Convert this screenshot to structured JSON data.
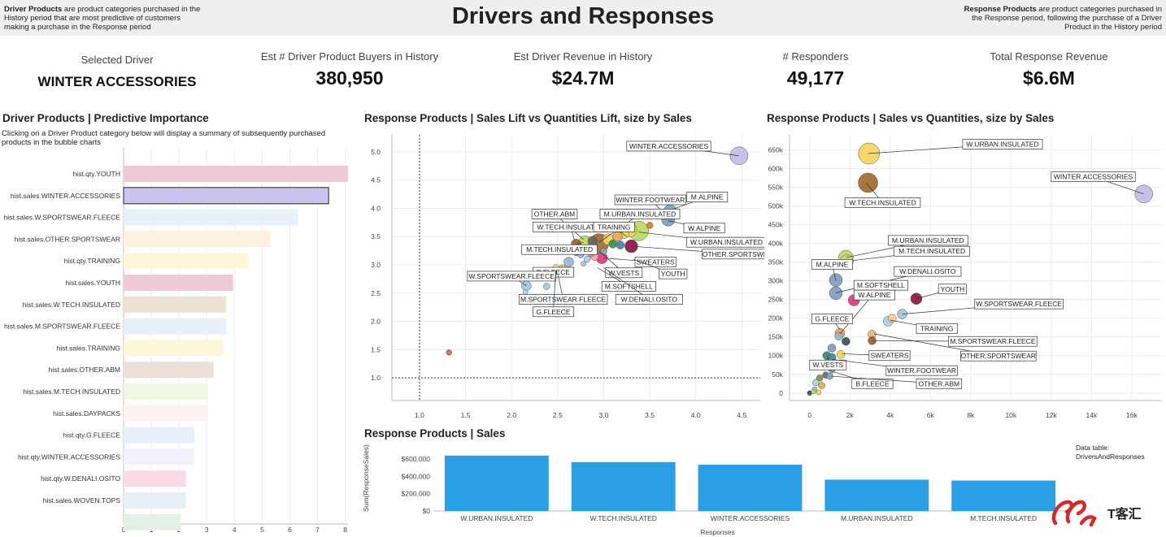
{
  "header": {
    "title": "Drivers and Responses",
    "left_bold": "Driver Products",
    "left_text": " are product categories purchased in the History period that are most predictive of customers making a purchase in the Response period",
    "right_bold": "Response Products",
    "right_text": " are product categories purchased in the Response period, following the purchase of a Driver Product in the History period"
  },
  "kpis": [
    {
      "label": "Selected Driver",
      "value": "WINTER ACCESSORIES"
    },
    {
      "label": "Est # Driver Product Buyers in History",
      "value": "380,950"
    },
    {
      "label": "Est Driver Revenue in History",
      "value": "$24.7M"
    },
    {
      "label": "# Responders",
      "value": "49,177"
    },
    {
      "label": "Total Response Revenue",
      "value": "$6.6M"
    }
  ],
  "importance": {
    "title": "Driver Products | Predictive Importance",
    "subtitle": "Clicking on a Driver Product category below will display a summary of subsequently purchased products in the bubble charts",
    "selected": "hist.sales.WINTER.ACCESSORIES",
    "xticks": [
      0,
      1,
      2,
      3,
      4,
      5,
      6,
      7,
      8
    ],
    "xmax": 8.1,
    "rows": [
      {
        "label": "hist.qty.YOUTH",
        "value": 8.1,
        "color": "#efc9d8"
      },
      {
        "label": "hist.sales.WINTER.ACCESSORIES",
        "value": 7.4,
        "color": "#cdc3ee"
      },
      {
        "label": "hist.sales.W.SPORTSWEAR.FLEECE",
        "value": 6.3,
        "color": "#e6f1f9"
      },
      {
        "label": "hist.sales.OTHER.SPORTSWEAR",
        "value": 5.3,
        "color": "#fdf0dd"
      },
      {
        "label": "hist.qty.TRAINING",
        "value": 4.5,
        "color": "#fdf6d9"
      },
      {
        "label": "hist.sales.YOUTH",
        "value": 3.95,
        "color": "#efc9d8"
      },
      {
        "label": "hist.sales.W.TECH.INSULATED",
        "value": 3.7,
        "color": "#eee0d3"
      },
      {
        "label": "hist.sales.M.SPORTSWEAR.FLEECE",
        "value": 3.7,
        "color": "#e6f1f9"
      },
      {
        "label": "hist.sales.TRAINING",
        "value": 3.6,
        "color": "#fdf6d9"
      },
      {
        "label": "hist.sales.OTHER.ABM",
        "value": 3.25,
        "color": "#eae0d6"
      },
      {
        "label": "hist.sales.M.TECH.INSULATED",
        "value": 3.05,
        "color": "#eef6e4"
      },
      {
        "label": "hist.sales.DAYPACKS",
        "value": 3.05,
        "color": "#fcf3f1"
      },
      {
        "label": "hist.qty.G.FLEECE",
        "value": 2.55,
        "color": "#e7f0f8"
      },
      {
        "label": "hist.qty.WINTER.ACCESSORIES",
        "value": 2.55,
        "color": "#f2f0fa"
      },
      {
        "label": "hist.qty.W.DENALI.OSITO",
        "value": 2.25,
        "color": "#fcd9e7"
      },
      {
        "label": "hist.sales.WOVEN.TOPS",
        "value": 2.25,
        "color": "#e6eef6"
      },
      {
        "label": "",
        "value": 2.05,
        "color": "#e2f1e4"
      }
    ]
  },
  "lift": {
    "title": "Response Products | Sales Lift vs Quantities Lift, size by Sales",
    "xticks": [
      1.0,
      1.5,
      2.0,
      2.5,
      3.0,
      3.5,
      4.0,
      4.5
    ],
    "yticks": [
      1.0,
      1.5,
      2.0,
      2.5,
      3.0,
      3.5,
      4.0,
      4.5,
      5.0
    ],
    "xlim": [
      0.7,
      4.7
    ],
    "ylim": [
      0.6,
      5.3
    ],
    "refline_x": 1.0,
    "refline_y": 1.0,
    "labels": [
      {
        "text": "WINTER.ACCESSORIES",
        "x": 4.47,
        "y": 4.93,
        "lx": 3.25,
        "ly": 5.1
      },
      {
        "text": "M.ALPINE",
        "x": 3.69,
        "y": 3.95,
        "lx": 3.9,
        "ly": 4.2
      },
      {
        "text": "WINTER.FOOTWEAR",
        "x": 3.67,
        "y": 3.9,
        "lx": 3.12,
        "ly": 4.15
      },
      {
        "text": "OTHER.ABM",
        "x": 2.78,
        "y": 3.45,
        "lx": 2.22,
        "ly": 3.9
      },
      {
        "text": "M.URBAN.INSULATED",
        "x": 2.95,
        "y": 3.4,
        "lx": 2.96,
        "ly": 3.9
      },
      {
        "text": "W.ALPINE",
        "x": 3.7,
        "y": 3.78,
        "lx": 3.87,
        "ly": 3.65
      },
      {
        "text": "W.TECH.INSULATED",
        "x": 2.68,
        "y": 3.45,
        "lx": 2.23,
        "ly": 3.67
      },
      {
        "text": "TRAINING",
        "x": 3.25,
        "y": 3.5,
        "lx": 2.89,
        "ly": 3.67
      },
      {
        "text": "W.URBAN.INSULATED",
        "x": 3.38,
        "y": 3.58,
        "lx": 3.9,
        "ly": 3.4
      },
      {
        "text": "M.TECH.INSULATED",
        "x": 2.78,
        "y": 3.4,
        "lx": 2.11,
        "ly": 3.27
      },
      {
        "text": "OTHER.SPORTSWEAR",
        "x": 3.3,
        "y": 3.33,
        "lx": 4.07,
        "ly": 3.19
      },
      {
        "text": "SWEATERS",
        "x": 3.0,
        "y": 3.12,
        "lx": 3.34,
        "ly": 3.05
      },
      {
        "text": "W.VESTS",
        "x": 2.96,
        "y": 3.23,
        "lx": 3.02,
        "ly": 2.86
      },
      {
        "text": "YOUTH",
        "x": 3.32,
        "y": 3.1,
        "lx": 3.6,
        "ly": 2.84
      },
      {
        "text": "B.FLEECE",
        "x": 2.48,
        "y": 2.92,
        "lx": 2.23,
        "ly": 2.87
      },
      {
        "text": "W.SPORTSWEAR.FLEECE",
        "x": 2.16,
        "y": 2.63,
        "lx": 1.52,
        "ly": 2.8
      },
      {
        "text": "M.SOFTSHELL",
        "x": 2.93,
        "y": 2.95,
        "lx": 2.98,
        "ly": 2.62
      },
      {
        "text": "M.SPORTSWEAR.FLEECE",
        "x": 2.5,
        "y": 2.85,
        "lx": 2.08,
        "ly": 2.39
      },
      {
        "text": "W.DENALI.OSITO",
        "x": 3.0,
        "y": 2.95,
        "lx": 3.13,
        "ly": 2.39
      },
      {
        "text": "G.FLEECE",
        "x": 2.48,
        "y": 2.9,
        "lx": 2.23,
        "ly": 2.17
      }
    ],
    "points": [
      {
        "x": 4.47,
        "y": 4.93,
        "r": 11,
        "c": "#c3b8e6"
      },
      {
        "x": 3.72,
        "y": 3.95,
        "r": 8,
        "c": "#7a9bbf"
      },
      {
        "x": 3.7,
        "y": 3.8,
        "r": 8,
        "c": "#7a9bbf"
      },
      {
        "x": 3.68,
        "y": 3.9,
        "r": 5,
        "c": "#2f4e5e"
      },
      {
        "x": 3.5,
        "y": 3.7,
        "r": 4,
        "c": "#e07b1f"
      },
      {
        "x": 3.38,
        "y": 3.6,
        "r": 12,
        "c": "#b8d85c"
      },
      {
        "x": 3.28,
        "y": 3.62,
        "r": 9,
        "c": "#f2d35b"
      },
      {
        "x": 3.3,
        "y": 3.33,
        "r": 8,
        "c": "#8a1240"
      },
      {
        "x": 3.22,
        "y": 3.55,
        "r": 6,
        "c": "#f2d35b"
      },
      {
        "x": 3.15,
        "y": 3.5,
        "r": 6,
        "c": "#e8a34a"
      },
      {
        "x": 3.05,
        "y": 3.45,
        "r": 7,
        "c": "#f2d35b"
      },
      {
        "x": 2.95,
        "y": 3.38,
        "r": 12,
        "c": "#a0662b"
      },
      {
        "x": 2.88,
        "y": 3.42,
        "r": 6,
        "c": "#666666"
      },
      {
        "x": 2.8,
        "y": 3.4,
        "r": 8,
        "c": "#b8d85c"
      },
      {
        "x": 2.7,
        "y": 3.37,
        "r": 6,
        "c": "#9a5a34"
      },
      {
        "x": 3.1,
        "y": 3.37,
        "r": 5,
        "c": "#2e8b57"
      },
      {
        "x": 3.18,
        "y": 3.35,
        "r": 5,
        "c": "#3f7fa7"
      },
      {
        "x": 2.98,
        "y": 3.12,
        "r": 7,
        "c": "#e3307a"
      },
      {
        "x": 2.9,
        "y": 3.15,
        "r": 5,
        "c": "#f3a5a5"
      },
      {
        "x": 2.86,
        "y": 3.2,
        "r": 4,
        "c": "#d99a6b"
      },
      {
        "x": 3.0,
        "y": 3.24,
        "r": 4,
        "c": "#7aa7c7"
      },
      {
        "x": 2.82,
        "y": 3.1,
        "r": 4,
        "c": "#a9cde3"
      },
      {
        "x": 2.75,
        "y": 3.18,
        "r": 4,
        "c": "#7fb3d5"
      },
      {
        "x": 2.7,
        "y": 3.22,
        "r": 4,
        "c": "#7c8c3a"
      },
      {
        "x": 2.78,
        "y": 3.02,
        "r": 3,
        "c": "#9cc6e0"
      },
      {
        "x": 2.62,
        "y": 3.05,
        "r": 6,
        "c": "#8fb8d5"
      },
      {
        "x": 2.55,
        "y": 2.93,
        "r": 5,
        "c": "#e8b46a"
      },
      {
        "x": 2.5,
        "y": 2.88,
        "r": 5,
        "c": "#f0a430"
      },
      {
        "x": 2.48,
        "y": 2.95,
        "r": 4,
        "c": "#f5d08a"
      },
      {
        "x": 2.38,
        "y": 2.62,
        "r": 4,
        "c": "#9cc6e0"
      },
      {
        "x": 2.16,
        "y": 2.63,
        "r": 6,
        "c": "#9cc6e0"
      },
      {
        "x": 2.15,
        "y": 2.52,
        "r": 3,
        "c": "#b5d3e6"
      },
      {
        "x": 1.32,
        "y": 1.45,
        "r": 3.5,
        "c": "#c0704a"
      }
    ]
  },
  "scatter": {
    "title": "Response Products | Sales vs Quantities, size by Sales",
    "xticks": [
      0,
      2000,
      4000,
      6000,
      8000,
      10000,
      12000,
      14000,
      16000
    ],
    "xtick_labels": [
      "0",
      "2k",
      "4k",
      "6k",
      "8k",
      "10k",
      "12k",
      "14k",
      "16k"
    ],
    "yticks": [
      0,
      50000,
      100000,
      150000,
      200000,
      250000,
      300000,
      350000,
      400000,
      450000,
      500000,
      550000,
      600000,
      650000
    ],
    "ytick_labels": [
      "0",
      "50k",
      "100k",
      "150k",
      "200k",
      "250k",
      "300k",
      "350k",
      "400k",
      "450k",
      "500k",
      "550k",
      "600k",
      "650k"
    ],
    "xlim": [
      -1000,
      17500
    ],
    "ylim": [
      -20000,
      690000
    ],
    "labels": [
      {
        "text": "W.URBAN.INSULATED",
        "x": 2900,
        "y": 640000,
        "lx": 7600,
        "ly": 665000
      },
      {
        "text": "WINTER.ACCESSORIES",
        "x": 16600,
        "y": 532000,
        "lx": 12000,
        "ly": 578000
      },
      {
        "text": "W.TECH.INSULATED",
        "x": 2800,
        "y": 562000,
        "lx": 1750,
        "ly": 509000
      },
      {
        "text": "M.URBAN.INSULATED",
        "x": 1800,
        "y": 362000,
        "lx": 3900,
        "ly": 408000
      },
      {
        "text": "M.TECH.INSULATED",
        "x": 1800,
        "y": 352000,
        "lx": 4200,
        "ly": 379000
      },
      {
        "text": "M.ALPINE",
        "x": 1300,
        "y": 300000,
        "lx": 100,
        "ly": 344000
      },
      {
        "text": "W.DENALI.OSITO",
        "x": 1300,
        "y": 268000,
        "lx": 4200,
        "ly": 325000
      },
      {
        "text": "M.SOFTSHELL",
        "x": 1500,
        "y": 158000,
        "lx": 2200,
        "ly": 288000
      },
      {
        "text": "YOUTH",
        "x": 5300,
        "y": 252000,
        "lx": 6400,
        "ly": 278000
      },
      {
        "text": "W.ALPINE",
        "x": 2200,
        "y": 248000,
        "lx": 2200,
        "ly": 262000
      },
      {
        "text": "W.SPORTSWEAR.FLEECE",
        "x": 4600,
        "y": 211000,
        "lx": 8200,
        "ly": 238000
      },
      {
        "text": "G.FLEECE",
        "x": 1500,
        "y": 170000,
        "lx": 100,
        "ly": 198000
      },
      {
        "text": "TRAINING",
        "x": 4000,
        "y": 195000,
        "lx": 5300,
        "ly": 172000
      },
      {
        "text": "M.SPORTSWEAR.FLEECE",
        "x": 3100,
        "y": 140000,
        "lx": 6900,
        "ly": 138000
      },
      {
        "text": "SWEATERS",
        "x": 1600,
        "y": 105000,
        "lx": 2950,
        "ly": 100000
      },
      {
        "text": "OTHER.SPORTSWEAR",
        "x": 3200,
        "y": 158000,
        "lx": 7500,
        "ly": 99000
      },
      {
        "text": "W.VESTS",
        "x": 900,
        "y": 98000,
        "lx": 0,
        "ly": 75000
      },
      {
        "text": "WINTER.FOOTWEAR",
        "x": 1100,
        "y": 90000,
        "lx": 3800,
        "ly": 60000
      },
      {
        "text": "B.FLEECE",
        "x": 1000,
        "y": 60000,
        "lx": 2100,
        "ly": 25000
      },
      {
        "text": "OTHER.ABM",
        "x": 1050,
        "y": 45000,
        "lx": 5300,
        "ly": 25000
      }
    ],
    "points": [
      {
        "x": 2950,
        "y": 640000,
        "r": 13,
        "c": "#f5d35c"
      },
      {
        "x": 16600,
        "y": 532000,
        "r": 11,
        "c": "#c3b8e6"
      },
      {
        "x": 2900,
        "y": 562000,
        "r": 12,
        "c": "#a0662b"
      },
      {
        "x": 1800,
        "y": 362000,
        "r": 9,
        "c": "#b8d85c"
      },
      {
        "x": 1850,
        "y": 352000,
        "r": 8,
        "c": "#c5df7a"
      },
      {
        "x": 1300,
        "y": 302000,
        "r": 8,
        "c": "#7a9bbf"
      },
      {
        "x": 1300,
        "y": 267000,
        "r": 8,
        "c": "#7a9bbf"
      },
      {
        "x": 5300,
        "y": 252000,
        "r": 7,
        "c": "#8a1240"
      },
      {
        "x": 2200,
        "y": 248000,
        "r": 7,
        "c": "#e3307a"
      },
      {
        "x": 4600,
        "y": 211000,
        "r": 6,
        "c": "#9cc6e0"
      },
      {
        "x": 3900,
        "y": 192000,
        "r": 6,
        "c": "#a9cde3"
      },
      {
        "x": 4100,
        "y": 200000,
        "r": 5,
        "c": "#f5d08a"
      },
      {
        "x": 1500,
        "y": 160000,
        "r": 6,
        "c": "#e8a34a"
      },
      {
        "x": 1450,
        "y": 152000,
        "r": 5,
        "c": "#8fb8d5"
      },
      {
        "x": 3100,
        "y": 157000,
        "r": 5,
        "c": "#e8b46a"
      },
      {
        "x": 3100,
        "y": 140000,
        "r": 5,
        "c": "#9a5a34"
      },
      {
        "x": 1800,
        "y": 138000,
        "r": 5,
        "c": "#2f4e5e"
      },
      {
        "x": 1100,
        "y": 120000,
        "r": 5,
        "c": "#7a9bbf"
      },
      {
        "x": 1550,
        "y": 103000,
        "r": 5,
        "c": "#f2d35b"
      },
      {
        "x": 850,
        "y": 100000,
        "r": 5,
        "c": "#2e8b57"
      },
      {
        "x": 1100,
        "y": 95000,
        "r": 5,
        "c": "#3f7fa7"
      },
      {
        "x": 900,
        "y": 75000,
        "r": 4,
        "c": "#d99a6b"
      },
      {
        "x": 1100,
        "y": 62000,
        "r": 4,
        "c": "#7fb3d5"
      },
      {
        "x": 800,
        "y": 48000,
        "r": 4,
        "c": "#666666"
      },
      {
        "x": 1000,
        "y": 45000,
        "r": 4,
        "c": "#7aa7c7"
      },
      {
        "x": 500,
        "y": 40000,
        "r": 4,
        "c": "#7c8c3a"
      },
      {
        "x": 300,
        "y": 28000,
        "r": 4,
        "c": "#a9cde3"
      },
      {
        "x": 600,
        "y": 20000,
        "r": 4,
        "c": "#e8a34a"
      },
      {
        "x": 250,
        "y": 10000,
        "r": 3,
        "c": "#9cc6e0"
      },
      {
        "x": 0,
        "y": 0,
        "r": 3,
        "c": "#2f4e5e"
      },
      {
        "x": 200,
        "y": 4000,
        "r": 3,
        "c": "#b8d85c"
      },
      {
        "x": 450,
        "y": 2000,
        "r": 3,
        "c": "#f2d35b"
      }
    ]
  },
  "sales_bar": {
    "title": "Response Products | Sales",
    "ylabel": "Sum(ResponseSales)",
    "xlabel": "Responses",
    "yticks": [
      0,
      200000,
      400000,
      600000
    ],
    "ytick_labels": [
      "$0",
      "$200,000",
      "$400,000",
      "$600,000"
    ],
    "ymax": 760000,
    "categories": [
      "W.URBAN.INSULATED",
      "W.TECH.INSULATED",
      "WINTER.ACCESSORIES",
      "M.URBAN.INSULATED",
      "M.TECH.INSULATED"
    ],
    "values": [
      640000,
      565000,
      535000,
      362000,
      352000
    ],
    "bar_color": "#2b9fe6"
  },
  "datatable_note": {
    "line1": "Data table:",
    "line2": "DriversAndResponses"
  },
  "logo_text": "T客汇",
  "chart_data": [
    {
      "type": "bar",
      "title": "Driver Products | Predictive Importance",
      "orientation": "horizontal",
      "categories": [
        "hist.qty.YOUTH",
        "hist.sales.WINTER.ACCESSORIES",
        "hist.sales.W.SPORTSWEAR.FLEECE",
        "hist.sales.OTHER.SPORTSWEAR",
        "hist.qty.TRAINING",
        "hist.sales.YOUTH",
        "hist.sales.W.TECH.INSULATED",
        "hist.sales.M.SPORTSWEAR.FLEECE",
        "hist.sales.TRAINING",
        "hist.sales.OTHER.ABM",
        "hist.sales.M.TECH.INSULATED",
        "hist.sales.DAYPACKS",
        "hist.qty.G.FLEECE",
        "hist.qty.WINTER.ACCESSORIES",
        "hist.qty.W.DENALI.OSITO",
        "hist.sales.WOVEN.TOPS"
      ],
      "values": [
        8.1,
        7.4,
        6.3,
        5.3,
        4.5,
        3.95,
        3.7,
        3.7,
        3.6,
        3.25,
        3.05,
        3.05,
        2.55,
        2.55,
        2.25,
        2.25
      ],
      "xlim": [
        0,
        8.1
      ]
    },
    {
      "type": "scatter",
      "title": "Response Products | Sales Lift vs Quantities Lift, size by Sales",
      "xlim": [
        0.7,
        4.7
      ],
      "ylim": [
        0.6,
        5.3
      ]
    },
    {
      "type": "scatter",
      "title": "Response Products | Sales vs Quantities, size by Sales",
      "xlim": [
        -1000,
        17500
      ],
      "ylim": [
        -20000,
        690000
      ]
    },
    {
      "type": "bar",
      "title": "Response Products | Sales",
      "categories": [
        "W.URBAN.INSULATED",
        "W.TECH.INSULATED",
        "WINTER.ACCESSORIES",
        "M.URBAN.INSULATED",
        "M.TECH.INSULATED"
      ],
      "values": [
        640000,
        565000,
        535000,
        362000,
        352000
      ],
      "xlabel": "Responses",
      "ylabel": "Sum(ResponseSales)"
    }
  ]
}
